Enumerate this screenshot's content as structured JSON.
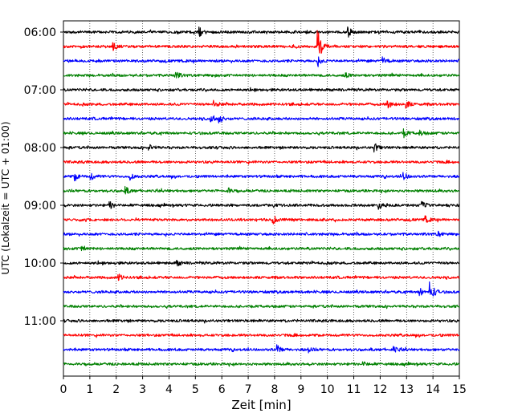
{
  "chart_data": {
    "type": "line",
    "title": "",
    "xlabel": "Zeit  [min]",
    "ylabel": "UTC (Lokalzeit = UTC + 01:00)",
    "xlim": [
      0,
      15
    ],
    "x_ticks": [
      0,
      1,
      2,
      3,
      4,
      5,
      6,
      7,
      8,
      9,
      10,
      11,
      12,
      13,
      14,
      15
    ],
    "y_ticks": [
      "06:00",
      "07:00",
      "08:00",
      "09:00",
      "10:00",
      "11:00"
    ],
    "grid": "vertical dotted",
    "line_interval_minutes": 15,
    "color_cycle": [
      "#000000",
      "#ff0000",
      "#0000ff",
      "#008000"
    ],
    "traces": [
      {
        "start": "06:00",
        "color": "#000000",
        "events": [
          [
            5.15,
            0.6
          ],
          [
            10.8,
            0.6
          ]
        ]
      },
      {
        "start": "06:15",
        "color": "#ff0000",
        "events": [
          [
            1.9,
            0.45
          ],
          [
            8.75,
            0.3
          ],
          [
            9.65,
            2.6
          ]
        ]
      },
      {
        "start": "06:30",
        "color": "#0000ff",
        "events": [
          [
            9.65,
            0.5
          ],
          [
            12.1,
            0.45
          ]
        ]
      },
      {
        "start": "06:45",
        "color": "#008000",
        "events": [
          [
            4.25,
            0.5
          ],
          [
            10.7,
            0.3
          ]
        ]
      },
      {
        "start": "07:00",
        "color": "#000000",
        "events": []
      },
      {
        "start": "07:15",
        "color": "#ff0000",
        "events": [
          [
            5.7,
            0.45
          ],
          [
            12.3,
            0.6
          ],
          [
            13.0,
            0.45
          ]
        ]
      },
      {
        "start": "07:30",
        "color": "#0000ff",
        "events": [
          [
            5.6,
            0.55
          ],
          [
            5.9,
            0.5
          ]
        ]
      },
      {
        "start": "07:45",
        "color": "#008000",
        "events": [
          [
            12.9,
            0.45
          ],
          [
            13.5,
            0.35
          ]
        ]
      },
      {
        "start": "08:00",
        "color": "#000000",
        "events": [
          [
            3.25,
            0.35
          ],
          [
            11.8,
            0.5
          ]
        ]
      },
      {
        "start": "08:15",
        "color": "#ff0000",
        "events": []
      },
      {
        "start": "08:30",
        "color": "#0000ff",
        "events": [
          [
            0.45,
            0.5
          ],
          [
            1.05,
            0.4
          ],
          [
            2.55,
            0.4
          ],
          [
            12.9,
            0.45
          ]
        ]
      },
      {
        "start": "08:45",
        "color": "#008000",
        "events": [
          [
            2.35,
            0.5
          ],
          [
            6.2,
            0.5
          ]
        ]
      },
      {
        "start": "09:00",
        "color": "#000000",
        "events": [
          [
            1.75,
            0.55
          ],
          [
            11.95,
            0.4
          ],
          [
            13.6,
            0.45
          ]
        ]
      },
      {
        "start": "09:15",
        "color": "#ff0000",
        "events": [
          [
            7.95,
            0.6
          ],
          [
            13.7,
            0.45
          ]
        ]
      },
      {
        "start": "09:30",
        "color": "#0000ff",
        "events": [
          [
            14.2,
            0.3
          ]
        ]
      },
      {
        "start": "09:45",
        "color": "#008000",
        "events": [
          [
            0.7,
            0.4
          ]
        ]
      },
      {
        "start": "10:00",
        "color": "#000000",
        "events": [
          [
            4.3,
            0.35
          ]
        ]
      },
      {
        "start": "10:15",
        "color": "#ff0000",
        "events": [
          [
            2.1,
            0.35
          ]
        ]
      },
      {
        "start": "10:30",
        "color": "#0000ff",
        "events": [
          [
            13.9,
            1.5
          ],
          [
            13.5,
            0.5
          ]
        ]
      },
      {
        "start": "10:45",
        "color": "#008000",
        "events": []
      },
      {
        "start": "11:00",
        "color": "#000000",
        "events": []
      },
      {
        "start": "11:15",
        "color": "#ff0000",
        "events": []
      },
      {
        "start": "11:30",
        "color": "#0000ff",
        "events": [
          [
            8.1,
            0.55
          ],
          [
            9.3,
            0.3
          ],
          [
            12.5,
            0.45
          ]
        ]
      },
      {
        "start": "11:45",
        "color": "#008000",
        "events": [
          [
            11.3,
            0.4
          ]
        ]
      }
    ]
  }
}
